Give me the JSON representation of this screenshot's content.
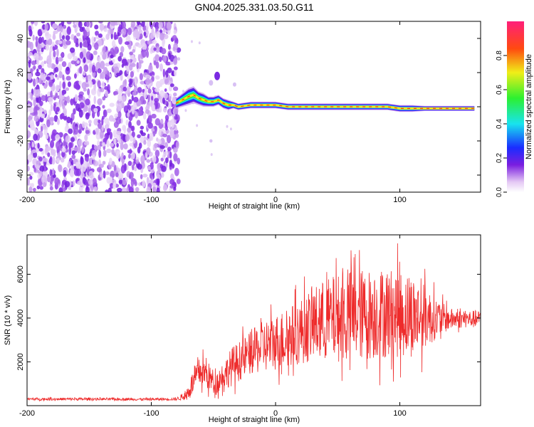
{
  "title": "GN04.2025.331.03.50.G11",
  "colors": {
    "snr_line": "#ee2b2b",
    "axis": "#000000"
  },
  "chart_data": [
    {
      "type": "heatmap",
      "xlabel": "Height of straight line (km)",
      "ylabel": "Frequency (Hz)",
      "xlim": [
        -200,
        165
      ],
      "ylim": [
        -50,
        50
      ],
      "xticks": [
        -200,
        -100,
        0,
        100
      ],
      "yticks": [
        -40,
        -20,
        0,
        20,
        40
      ],
      "colorbar": {
        "label": "Normalized spectral amplitude",
        "range": [
          0,
          1
        ],
        "ticks": [
          "0.0",
          "0.2",
          "0.4",
          "0.6",
          "0.8"
        ],
        "colormap": "rainbow"
      },
      "ridge": {
        "x": [
          -80,
          -75,
          -70,
          -66,
          -62,
          -58,
          -54,
          -50,
          -46,
          -42,
          -38,
          -34,
          -30,
          -20,
          -10,
          0,
          10,
          20,
          30,
          40,
          50,
          60,
          70,
          80,
          90,
          100,
          110,
          120,
          130,
          140,
          150,
          160
        ],
        "y": [
          2,
          4,
          6,
          7,
          5,
          4,
          3,
          3,
          4,
          2,
          1,
          1,
          0,
          1,
          1,
          1,
          0,
          0,
          0,
          0,
          0,
          0,
          0,
          0,
          0,
          -1,
          -1,
          -1,
          -1,
          -1,
          -1,
          -1
        ],
        "width": [
          3,
          4,
          5,
          5,
          4,
          4,
          3,
          3,
          3,
          3,
          3,
          2,
          2,
          2,
          2,
          2,
          2,
          2,
          2,
          2,
          2,
          2,
          2,
          2,
          2,
          2,
          2,
          1.5,
          1.5,
          1.5,
          1.5,
          1.5
        ]
      },
      "noise_region_x": [
        -200,
        -78
      ]
    },
    {
      "type": "line",
      "xlabel": "Height of straight line (km)",
      "ylabel": "SNR (10 * v/v)",
      "xlim": [
        -200,
        165
      ],
      "ylim": [
        0,
        7800
      ],
      "xticks": [
        -200,
        -100,
        0,
        100
      ],
      "yticks": [
        2000,
        4000,
        6000
      ],
      "series": [
        {
          "x": [
            -200,
            -150,
            -100,
            -80,
            -72,
            -68,
            -64,
            -60,
            -56,
            -52,
            -48,
            -44,
            -40,
            -35,
            -30,
            -20,
            -10,
            0,
            10,
            20,
            30,
            40,
            50,
            60,
            70,
            80,
            90,
            100,
            110,
            120,
            130,
            140,
            150,
            165
          ],
          "mean": [
            300,
            300,
            290,
            300,
            450,
            900,
            1300,
            1600,
            1450,
            1200,
            1000,
            1300,
            1500,
            1800,
            2000,
            2400,
            2700,
            2900,
            3100,
            3400,
            3700,
            3900,
            4000,
            4100,
            4150,
            4200,
            4250,
            4200,
            4100,
            4050,
            4000,
            3950,
            3950,
            3950
          ],
          "amp": [
            60,
            60,
            60,
            60,
            200,
            500,
            600,
            700,
            700,
            600,
            500,
            600,
            700,
            900,
            900,
            1000,
            1200,
            1300,
            1400,
            1500,
            1700,
            1900,
            2000,
            2100,
            2100,
            2100,
            2100,
            2000,
            1900,
            1500,
            900,
            500,
            400,
            400
          ]
        }
      ]
    }
  ]
}
